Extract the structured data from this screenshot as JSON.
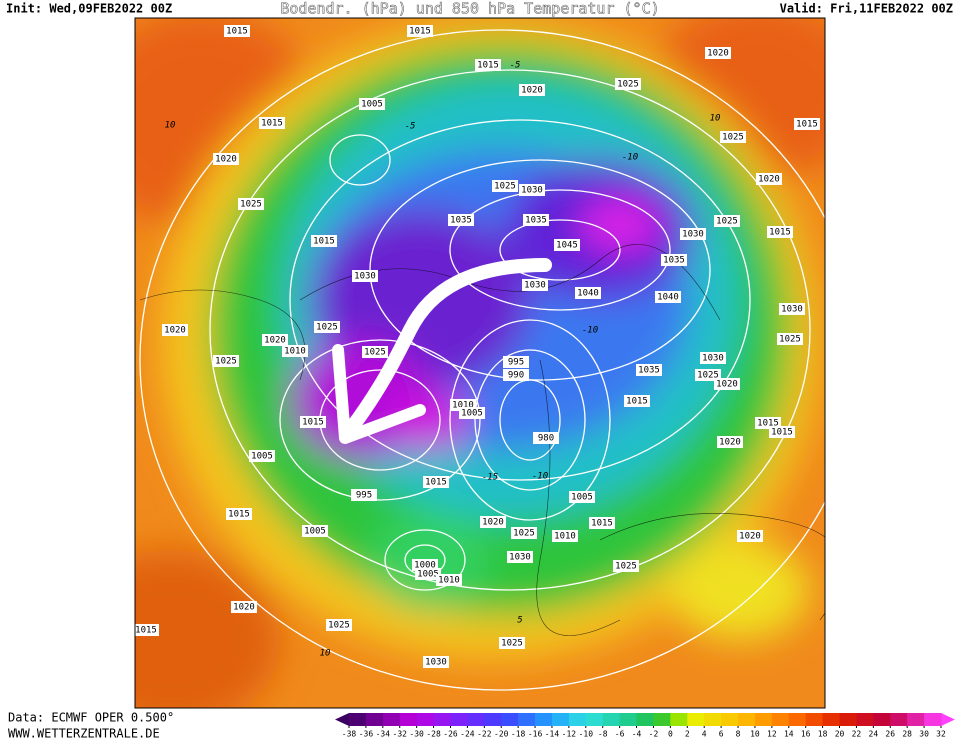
{
  "header": {
    "init": "Init: Wed,09FEB2022 00Z",
    "title": "Bodendr. (hPa) und 850 hPa Temperatur (°C)",
    "valid": "Valid: Fri,11FEB2022 00Z"
  },
  "footer": {
    "source": "Data: ECMWF OPER 0.500°",
    "website": "WWW.WETTERZENTRALE.DE"
  },
  "colorbar": {
    "ticks": [
      -38,
      -36,
      -34,
      -32,
      -30,
      -28,
      -26,
      -24,
      -22,
      -20,
      -18,
      -16,
      -14,
      -12,
      -10,
      -8,
      -6,
      -4,
      -2,
      0,
      2,
      4,
      6,
      8,
      10,
      12,
      14,
      16,
      18,
      20,
      22,
      24,
      26,
      28,
      30,
      32
    ]
  },
  "map": {
    "isobar_labels": [
      "1015",
      "1015",
      "1015",
      "1020",
      "1025",
      "1020",
      "1005",
      "1015",
      "1015",
      "1025",
      "1020",
      "1020",
      "1025",
      "1030",
      "1025",
      "1035",
      "1035",
      "1045",
      "1030",
      "1025",
      "1015",
      "1015",
      "1035",
      "1030",
      "1040",
      "1040",
      "1030",
      "1025",
      "1020",
      "1030",
      "1025",
      "1020",
      "1010",
      "1025",
      "1025",
      "995",
      "990",
      "1030",
      "1035",
      "1025",
      "1020",
      "1010",
      "1005",
      "1015",
      "1015",
      "1015",
      "1015",
      "980",
      "1020",
      "1005",
      "995",
      "1015",
      "1005",
      "1015",
      "1020",
      "1015",
      "1025",
      "1010",
      "1005",
      "1020",
      "1030",
      "1025",
      "1000",
      "1005",
      "1010",
      "1020",
      "1025",
      "1015",
      "1025",
      "1030"
    ],
    "temperature_labels": [
      "-5",
      "-10",
      "-10",
      "-15",
      "-10",
      "10",
      "10",
      "-5",
      "10",
      "5"
    ]
  }
}
